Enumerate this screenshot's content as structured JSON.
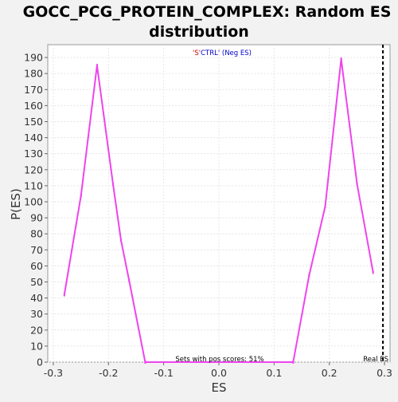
{
  "chart_data": {
    "type": "line",
    "title_line1": "GOCC_PCG_PROTEIN_COMPLEX: Random ES",
    "title_line2": "distribution",
    "xlabel": "ES",
    "ylabel": "P(ES)",
    "xlim": [
      -0.31,
      0.31
    ],
    "ylim": [
      0,
      198
    ],
    "x_ticks": [
      -0.3,
      -0.2,
      -0.1,
      0.0,
      0.1,
      0.2,
      0.3
    ],
    "x_tick_labels": [
      "-0.3",
      "-0.2",
      "-0.1",
      "0.0",
      "0.1",
      "0.2",
      "0.3"
    ],
    "y_ticks": [
      0,
      10,
      20,
      30,
      40,
      50,
      60,
      70,
      80,
      90,
      100,
      110,
      120,
      130,
      140,
      150,
      160,
      170,
      180,
      190
    ],
    "grid": true,
    "series": [
      {
        "color": "#ee44ee",
        "x": [
          -0.28,
          -0.2497,
          -0.2207,
          -0.1917,
          -0.1774,
          -0.1627,
          -0.1335,
          0.1345,
          0.1634,
          0.1925,
          0.2215,
          0.2503,
          0.2793
        ],
        "y": [
          42,
          104,
          185,
          111,
          76,
          51,
          0,
          0,
          54,
          97,
          189,
          111,
          56
        ]
      }
    ],
    "real_es": {
      "x": 0.3,
      "label": "Real ES",
      "color": "#000000"
    },
    "legend": {
      "prefix": "'S'",
      "prefix_color": "#cc0000",
      "suffix": "CTRL' (Neg ES)",
      "suffix_color": "#0000cc",
      "placement": "top-center"
    },
    "annotation": "Sets with pos scores: 51%"
  }
}
